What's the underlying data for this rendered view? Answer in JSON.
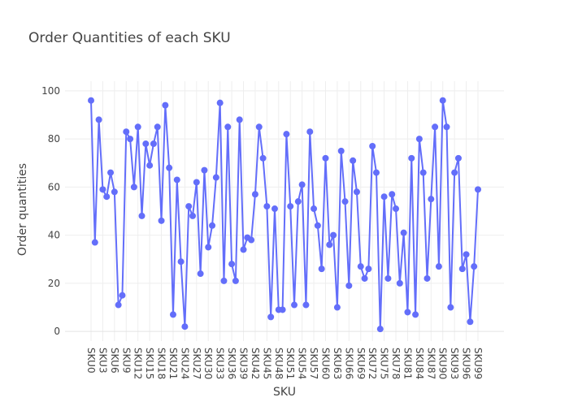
{
  "chart_data": {
    "type": "line",
    "title": "Order Quantities of each SKU",
    "xlabel": "SKU",
    "ylabel": "Order quantities",
    "ylim": [
      -4,
      104
    ],
    "yticks": [
      0,
      20,
      40,
      60,
      80,
      100
    ],
    "xticks": [
      "SKU0",
      "SKU3",
      "SKU6",
      "SKU9",
      "SKU12",
      "SKU15",
      "SKU18",
      "SKU21",
      "SKU24",
      "SKU27",
      "SKU30",
      "SKU33",
      "SKU36",
      "SKU39",
      "SKU42",
      "SKU45",
      "SKU48",
      "SKU51",
      "SKU54",
      "SKU57",
      "SKU60",
      "SKU63",
      "SKU66",
      "SKU69",
      "SKU72",
      "SKU75",
      "SKU78",
      "SKU81",
      "SKU84",
      "SKU87",
      "SKU90",
      "SKU93",
      "SKU96",
      "SKU99"
    ],
    "grid": true,
    "legend": "none",
    "line_color": "#636efa",
    "categories": [
      "SKU0",
      "SKU1",
      "SKU2",
      "SKU3",
      "SKU4",
      "SKU5",
      "SKU6",
      "SKU7",
      "SKU8",
      "SKU9",
      "SKU10",
      "SKU11",
      "SKU12",
      "SKU13",
      "SKU14",
      "SKU15",
      "SKU16",
      "SKU17",
      "SKU18",
      "SKU19",
      "SKU20",
      "SKU21",
      "SKU22",
      "SKU23",
      "SKU24",
      "SKU25",
      "SKU26",
      "SKU27",
      "SKU28",
      "SKU29",
      "SKU30",
      "SKU31",
      "SKU32",
      "SKU33",
      "SKU34",
      "SKU35",
      "SKU36",
      "SKU37",
      "SKU38",
      "SKU39",
      "SKU40",
      "SKU41",
      "SKU42",
      "SKU43",
      "SKU44",
      "SKU45",
      "SKU46",
      "SKU47",
      "SKU48",
      "SKU49",
      "SKU50",
      "SKU51",
      "SKU52",
      "SKU53",
      "SKU54",
      "SKU55",
      "SKU56",
      "SKU57",
      "SKU58",
      "SKU59",
      "SKU60",
      "SKU61",
      "SKU62",
      "SKU63",
      "SKU64",
      "SKU65",
      "SKU66",
      "SKU67",
      "SKU68",
      "SKU69",
      "SKU70",
      "SKU71",
      "SKU72",
      "SKU73",
      "SKU74",
      "SKU75",
      "SKU76",
      "SKU77",
      "SKU78",
      "SKU79",
      "SKU80",
      "SKU81",
      "SKU82",
      "SKU83",
      "SKU84",
      "SKU85",
      "SKU86",
      "SKU87",
      "SKU88",
      "SKU89",
      "SKU90",
      "SKU91",
      "SKU92",
      "SKU93",
      "SKU94",
      "SKU95",
      "SKU96",
      "SKU97",
      "SKU98",
      "SKU99"
    ],
    "values": [
      96,
      37,
      88,
      59,
      56,
      66,
      58,
      11,
      15,
      83,
      80,
      60,
      85,
      48,
      78,
      69,
      78,
      85,
      46,
      94,
      68,
      7,
      63,
      29,
      2,
      52,
      48,
      62,
      24,
      67,
      35,
      44,
      64,
      95,
      21,
      85,
      28,
      21,
      88,
      34,
      39,
      38,
      57,
      85,
      72,
      52,
      6,
      51,
      9,
      9,
      82,
      52,
      11,
      54,
      61,
      11,
      83,
      51,
      44,
      26,
      72,
      36,
      40,
      10,
      75,
      54,
      19,
      71,
      58,
      27,
      22,
      26,
      77,
      66,
      1,
      56,
      22,
      57,
      51,
      20,
      41,
      8,
      72,
      7,
      80,
      66,
      22,
      55,
      85,
      27,
      96,
      85,
      10,
      66,
      72,
      26,
      32,
      4,
      27,
      59
    ]
  }
}
